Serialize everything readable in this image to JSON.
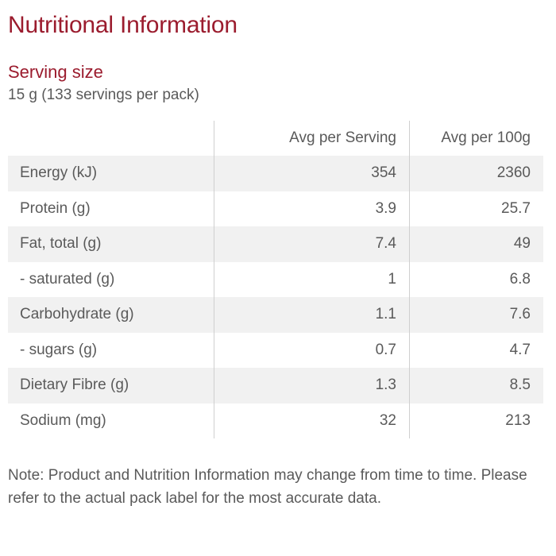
{
  "title": "Nutritional Information",
  "serving": {
    "heading": "Serving size",
    "text": "15 g (133 servings per pack)"
  },
  "table": {
    "headers": [
      "",
      "Avg per Serving",
      "Avg per 100g"
    ],
    "rows": [
      {
        "name": "Energy (kJ)",
        "per_serving": "354",
        "per_100g": "2360"
      },
      {
        "name": "Protein (g)",
        "per_serving": "3.9",
        "per_100g": "25.7"
      },
      {
        "name": "Fat, total (g)",
        "per_serving": "7.4",
        "per_100g": "49"
      },
      {
        "name": "- saturated (g)",
        "per_serving": "1",
        "per_100g": "6.8"
      },
      {
        "name": "Carbohydrate (g)",
        "per_serving": "1.1",
        "per_100g": "7.6"
      },
      {
        "name": "- sugars (g)",
        "per_serving": "0.7",
        "per_100g": "4.7"
      },
      {
        "name": "Dietary Fibre (g)",
        "per_serving": "1.3",
        "per_100g": "8.5"
      },
      {
        "name": "Sodium (mg)",
        "per_serving": "32",
        "per_100g": "213"
      }
    ]
  },
  "note": "Note: Product and Nutrition Information may change from time to time. Please refer to the actual pack label for the most accurate data.",
  "colors": {
    "heading": "#9b1c2e",
    "text": "#5a5a5a",
    "row_stripe": "#f1f1f1",
    "divider": "#cfcfcf"
  }
}
